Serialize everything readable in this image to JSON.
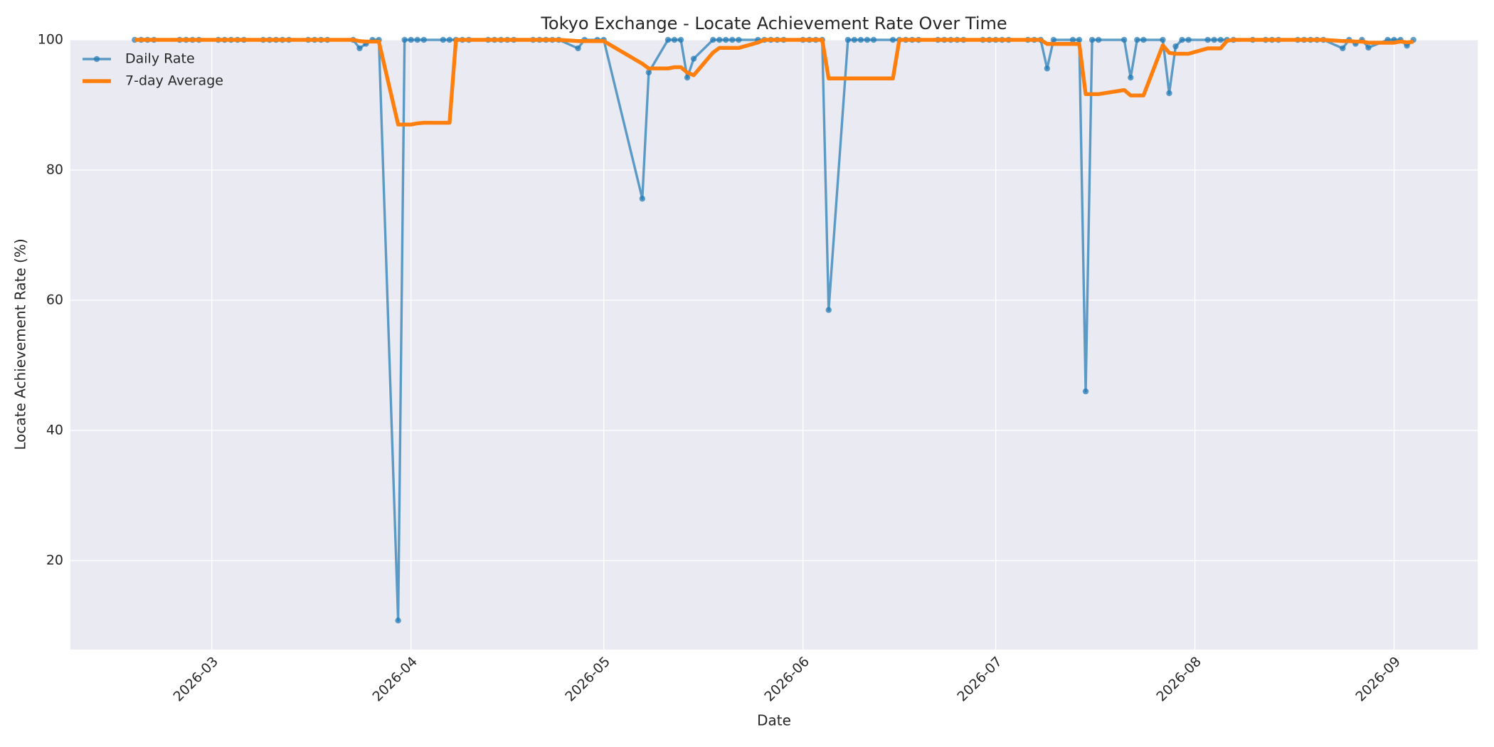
{
  "chart_data": {
    "type": "line",
    "title": "Tokyo Exchange - Locate Achievement Rate Over Time",
    "x_label": "Date",
    "y_label": "Locate Achievement Rate (%)",
    "x": [
      "2026-02-17",
      "2026-02-18",
      "2026-02-19",
      "2026-02-20",
      "2026-02-24",
      "2026-02-25",
      "2026-02-26",
      "2026-02-27",
      "2026-03-02",
      "2026-03-03",
      "2026-03-04",
      "2026-03-05",
      "2026-03-06",
      "2026-03-09",
      "2026-03-10",
      "2026-03-11",
      "2026-03-12",
      "2026-03-13",
      "2026-03-16",
      "2026-03-17",
      "2026-03-18",
      "2026-03-19",
      "2026-03-23",
      "2026-03-24",
      "2026-03-25",
      "2026-03-26",
      "2026-03-27",
      "2026-03-30",
      "2026-03-31",
      "2026-04-01",
      "2026-04-02",
      "2026-04-03",
      "2026-04-06",
      "2026-04-07",
      "2026-04-08",
      "2026-04-09",
      "2026-04-10",
      "2026-04-13",
      "2026-04-14",
      "2026-04-15",
      "2026-04-16",
      "2026-04-17",
      "2026-04-20",
      "2026-04-21",
      "2026-04-22",
      "2026-04-23",
      "2026-04-24",
      "2026-04-27",
      "2026-04-28",
      "2026-04-30",
      "2026-05-01",
      "2026-05-07",
      "2026-05-08",
      "2026-05-11",
      "2026-05-12",
      "2026-05-13",
      "2026-05-14",
      "2026-05-15",
      "2026-05-18",
      "2026-05-19",
      "2026-05-20",
      "2026-05-21",
      "2026-05-22",
      "2026-05-25",
      "2026-05-26",
      "2026-05-27",
      "2026-05-28",
      "2026-05-29",
      "2026-06-01",
      "2026-06-02",
      "2026-06-03",
      "2026-06-04",
      "2026-06-05",
      "2026-06-08",
      "2026-06-09",
      "2026-06-10",
      "2026-06-11",
      "2026-06-12",
      "2026-06-15",
      "2026-06-16",
      "2026-06-17",
      "2026-06-18",
      "2026-06-19",
      "2026-06-22",
      "2026-06-23",
      "2026-06-24",
      "2026-06-25",
      "2026-06-26",
      "2026-06-29",
      "2026-06-30",
      "2026-07-01",
      "2026-07-02",
      "2026-07-03",
      "2026-07-06",
      "2026-07-07",
      "2026-07-08",
      "2026-07-09",
      "2026-07-10",
      "2026-07-13",
      "2026-07-14",
      "2026-07-15",
      "2026-07-16",
      "2026-07-17",
      "2026-07-21",
      "2026-07-22",
      "2026-07-23",
      "2026-07-24",
      "2026-07-27",
      "2026-07-28",
      "2026-07-29",
      "2026-07-30",
      "2026-07-31",
      "2026-08-03",
      "2026-08-04",
      "2026-08-05",
      "2026-08-06",
      "2026-08-07",
      "2026-08-10",
      "2026-08-12",
      "2026-08-13",
      "2026-08-14",
      "2026-08-17",
      "2026-08-18",
      "2026-08-19",
      "2026-08-20",
      "2026-08-21",
      "2026-08-24",
      "2026-08-25",
      "2026-08-26",
      "2026-08-27",
      "2026-08-28",
      "2026-08-31",
      "2026-09-01",
      "2026-09-02",
      "2026-09-03",
      "2026-09-04"
    ],
    "series": [
      {
        "name": "Daily Rate",
        "color": "#1f77b4",
        "marker": true,
        "values": [
          100,
          100,
          100,
          100,
          100,
          100,
          100,
          100,
          100,
          100,
          100,
          100,
          100,
          100,
          100,
          100,
          100,
          100,
          100,
          100,
          100,
          100,
          100,
          98.7,
          99.4,
          100,
          100,
          10.8,
          100,
          100,
          100,
          100,
          100,
          100,
          100,
          100,
          100,
          100,
          100,
          100,
          100,
          100,
          100,
          100,
          100,
          100,
          100,
          98.7,
          100,
          100,
          100,
          75.6,
          95,
          100,
          100,
          100,
          94.2,
          97.1,
          100,
          100,
          100,
          100,
          100,
          100,
          100,
          100,
          100,
          100,
          100,
          100,
          100,
          100,
          58.5,
          100,
          100,
          100,
          100,
          100,
          100,
          100,
          100,
          100,
          100,
          100,
          100,
          100,
          100,
          100,
          100,
          100,
          100,
          100,
          100,
          100,
          100,
          100,
          95.6,
          100,
          100,
          100,
          46,
          100,
          100,
          100,
          94.2,
          100,
          100,
          100,
          91.8,
          99,
          100,
          100,
          100,
          100,
          100,
          100,
          100,
          100,
          100,
          100,
          100,
          100,
          100,
          100,
          100,
          100,
          98.7,
          100,
          99.4,
          100,
          98.8,
          100,
          100,
          100,
          99.1,
          100
        ]
      },
      {
        "name": "7-day Average",
        "color": "#ff7f0e",
        "marker": false,
        "values": [
          100,
          100,
          100,
          100,
          100,
          100,
          100,
          100,
          100,
          100,
          100,
          100,
          100,
          100,
          100,
          100,
          100,
          100,
          100,
          100,
          100,
          100,
          100,
          99.81,
          99.73,
          99.73,
          99.73,
          86.99,
          86.99,
          86.99,
          87.17,
          87.26,
          87.26,
          87.26,
          100,
          100,
          100,
          100,
          100,
          100,
          100,
          100,
          100,
          100,
          100,
          100,
          100,
          99.81,
          99.81,
          99.81,
          99.81,
          96.33,
          95.61,
          95.61,
          95.8,
          95.8,
          94.97,
          94.56,
          98.04,
          98.76,
          98.76,
          98.76,
          98.76,
          99.59,
          100,
          100,
          100,
          100,
          100,
          100,
          100,
          100,
          94.07,
          94.07,
          94.07,
          94.07,
          94.07,
          94.07,
          94.07,
          100,
          100,
          100,
          100,
          100,
          100,
          100,
          100,
          100,
          100,
          100,
          100,
          100,
          100,
          100,
          100,
          100,
          99.37,
          99.37,
          99.37,
          99.37,
          91.66,
          91.66,
          91.66,
          92.29,
          91.46,
          91.46,
          91.46,
          99.17,
          98.0,
          97.86,
          97.86,
          97.86,
          98.69,
          98.69,
          98.69,
          99.86,
          100,
          100,
          100,
          100,
          100,
          100,
          100,
          100,
          100,
          100,
          99.81,
          99.81,
          99.73,
          99.73,
          99.56,
          99.56,
          99.56,
          99.74,
          99.61,
          99.7
        ]
      }
    ],
    "xlim": [
      "2026-02-07",
      "2026-09-14"
    ],
    "xticks": [
      {
        "value": "2026-03-01",
        "label": "2026-03"
      },
      {
        "value": "2026-04-01",
        "label": "2026-04"
      },
      {
        "value": "2026-05-01",
        "label": "2026-05"
      },
      {
        "value": "2026-06-01",
        "label": "2026-06"
      },
      {
        "value": "2026-07-01",
        "label": "2026-07"
      },
      {
        "value": "2026-08-01",
        "label": "2026-08"
      },
      {
        "value": "2026-09-01",
        "label": "2026-09"
      }
    ],
    "ylim": [
      6.34,
      100
    ],
    "yticks": [
      20,
      40,
      60,
      80,
      100
    ],
    "grid": true,
    "legend": "upper left"
  }
}
